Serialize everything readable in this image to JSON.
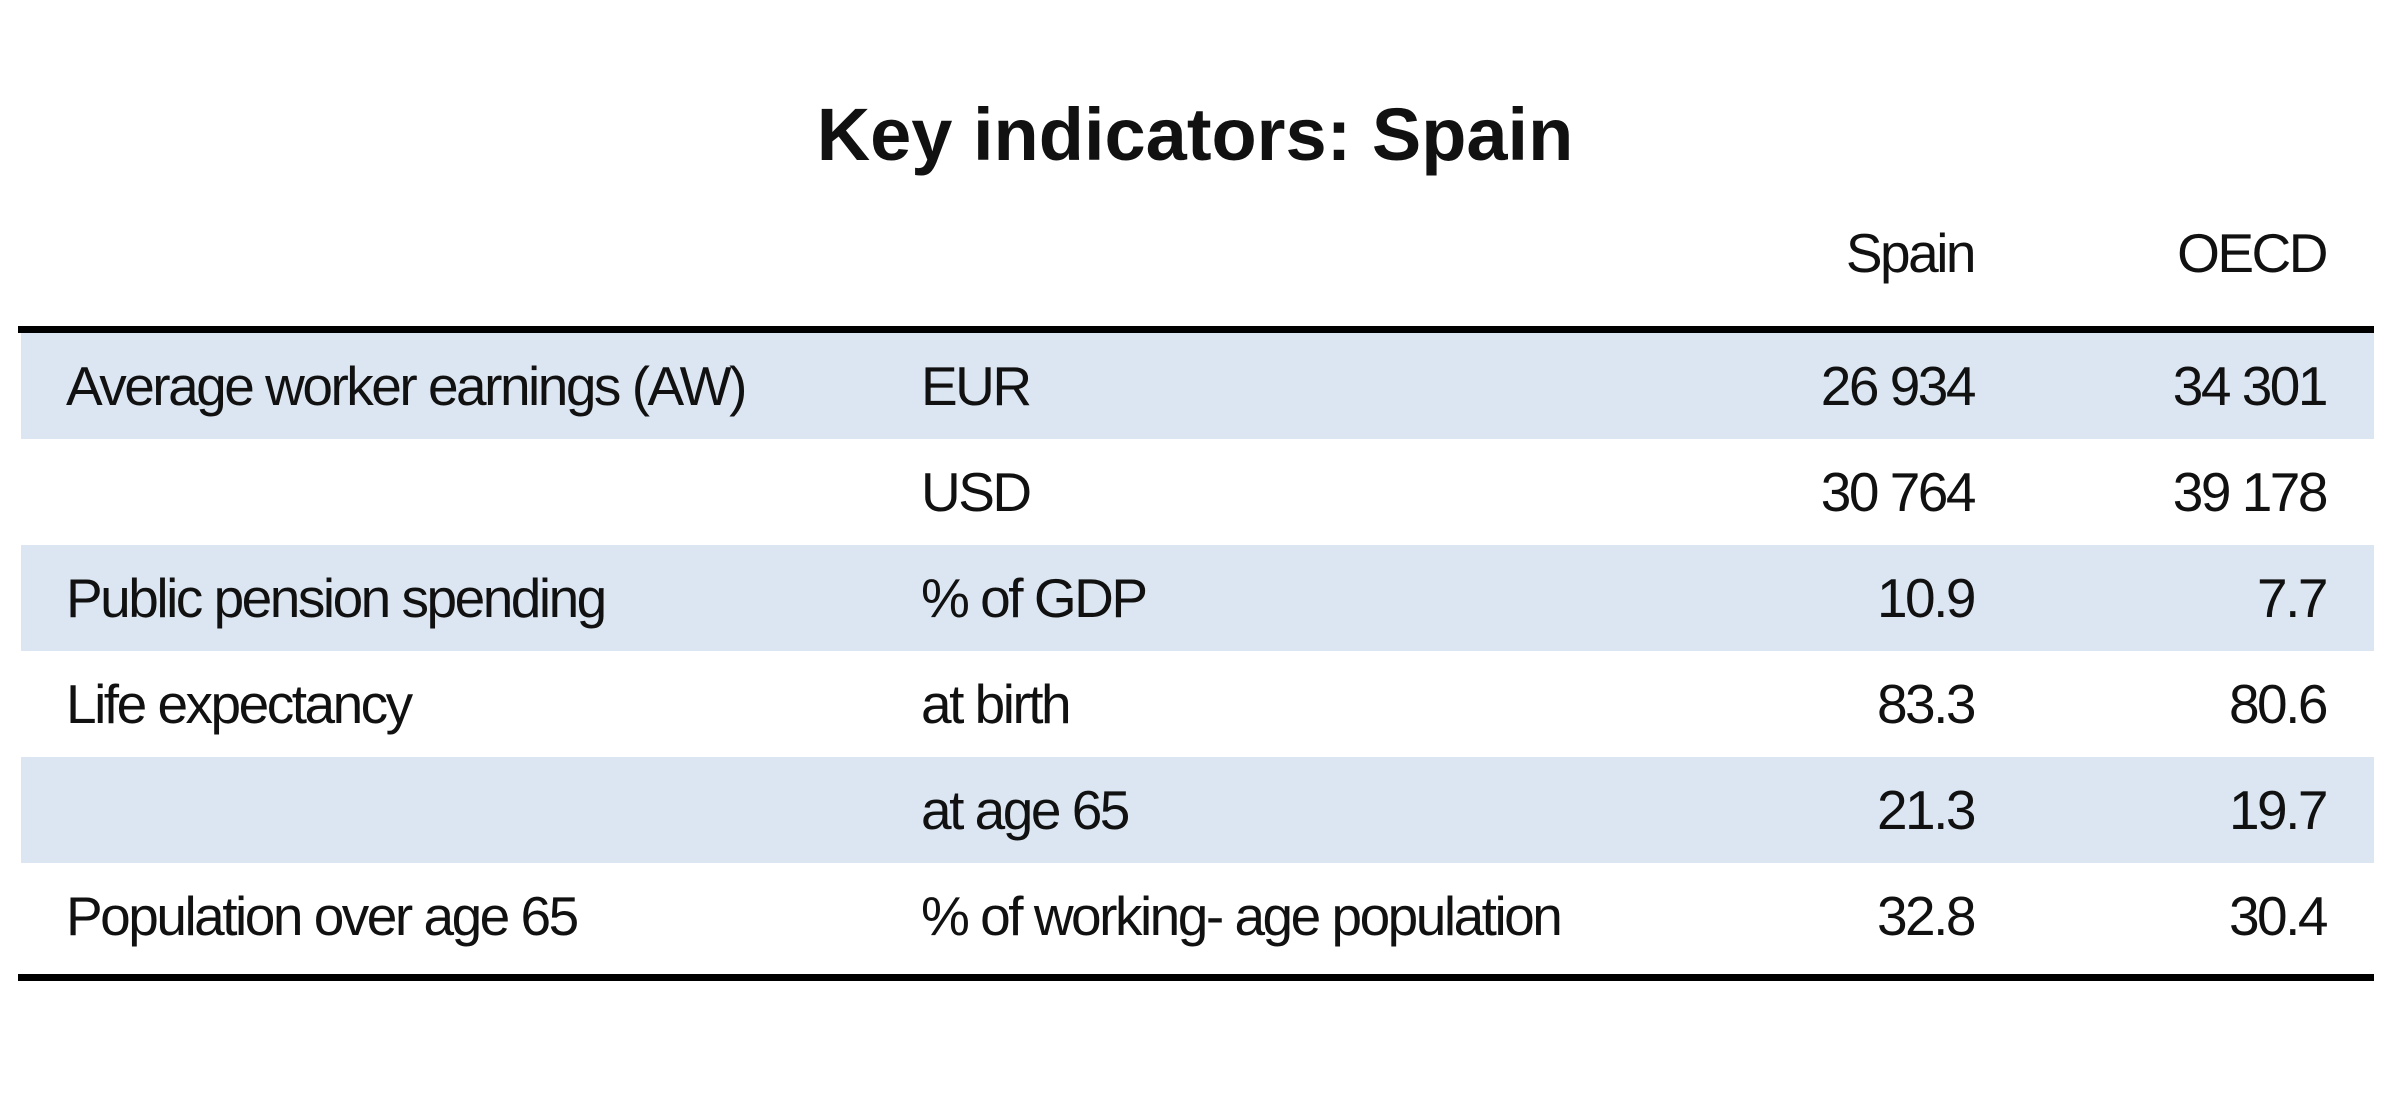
{
  "title": "Key indicators: Spain",
  "table": {
    "header": [
      "Spain",
      "OECD"
    ],
    "rows": [
      [
        "Average worker earnings (AW)",
        "EUR",
        "26 934",
        "34 301"
      ],
      [
        "",
        "USD",
        "30 764",
        "39 178"
      ],
      [
        "Public pension spending",
        "% of GDP",
        "10.9",
        "7.7"
      ],
      [
        "Life expectancy",
        "at birth",
        "83.3",
        "80.6"
      ],
      [
        "",
        "at age 65",
        "21.3",
        "19.7"
      ],
      [
        "Population over age 65",
        "% of working- age population",
        "32.8",
        "30.4"
      ]
    ]
  }
}
